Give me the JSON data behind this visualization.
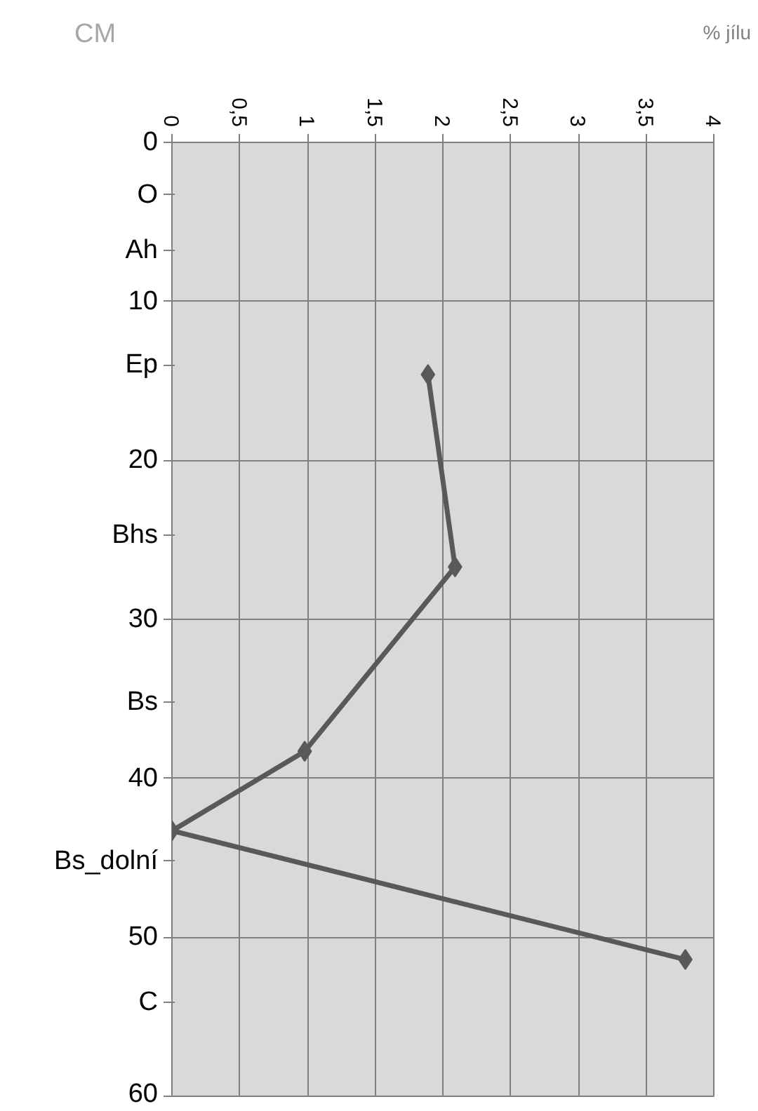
{
  "chart_data": {
    "type": "line",
    "xlabel": "% jílu",
    "ylabel": "CM",
    "x": [
      1.89,
      2.09,
      0.98,
      0.0,
      3.79
    ],
    "series": [
      {
        "color": "#595959",
        "values": [
          14.6,
          26.7,
          38.3,
          43.3,
          51.4
        ]
      }
    ],
    "xlim": [
      0,
      4
    ],
    "xticks": [
      0,
      {
        "value": 0.5,
        "label": "0,5"
      },
      1,
      {
        "value": 1.5,
        "label": "1,5"
      },
      2,
      {
        "value": 2.5,
        "label": "2,5"
      },
      3,
      {
        "value": 3.5,
        "label": "3,5"
      },
      4
    ],
    "ylim": [
      60,
      0
    ],
    "yticks": [
      0,
      {
        "value": 3.3,
        "label": "O"
      },
      {
        "value": 6.8,
        "label": "Ah"
      },
      10,
      {
        "value": 14,
        "label": "Ep"
      },
      20,
      {
        "value": 24.7,
        "label": "Bhs"
      },
      30,
      {
        "value": 35.2,
        "label": "Bs"
      },
      40,
      {
        "value": 45.2,
        "label": "Bs_dolní"
      },
      50,
      {
        "value": 54.1,
        "label": "C"
      },
      60
    ],
    "grid": true,
    "marker": "diamond",
    "line_style": "solid"
  }
}
